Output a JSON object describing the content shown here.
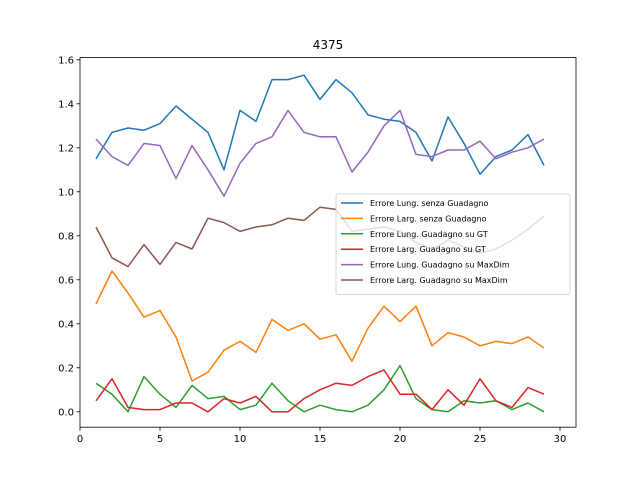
{
  "chart_data": {
    "type": "line",
    "title": "4375",
    "xlabel": "",
    "ylabel": "",
    "xlim": [
      0,
      31
    ],
    "ylim": [
      -0.07,
      1.61
    ],
    "x_ticks": [
      0,
      5,
      10,
      15,
      20,
      25,
      30
    ],
    "y_ticks": [
      0.0,
      0.2,
      0.4,
      0.6,
      0.8,
      1.0,
      1.2,
      1.4,
      1.6
    ],
    "x_tick_labels": [
      "0",
      "5",
      "10",
      "15",
      "20",
      "25",
      "30"
    ],
    "y_tick_labels": [
      "0.0",
      "0.2",
      "0.4",
      "0.6",
      "0.8",
      "1.0",
      "1.2",
      "1.4",
      "1.6"
    ],
    "grid": false,
    "legend_position": "center-right",
    "x": [
      1,
      2,
      3,
      4,
      5,
      6,
      7,
      8,
      9,
      10,
      11,
      12,
      13,
      14,
      15,
      16,
      17,
      18,
      19,
      20,
      21,
      22,
      23,
      24,
      25,
      26,
      27,
      28,
      29
    ],
    "series": [
      {
        "name": "Errore Lung. senza Guadagno",
        "color": "#1f77b4",
        "values": [
          1.15,
          1.27,
          1.29,
          1.28,
          1.31,
          1.39,
          1.33,
          1.27,
          1.1,
          1.37,
          1.32,
          1.51,
          1.51,
          1.53,
          1.42,
          1.51,
          1.45,
          1.35,
          1.33,
          1.32,
          1.27,
          1.14,
          1.34,
          1.22,
          1.08,
          1.16,
          1.19,
          1.26,
          1.12
        ]
      },
      {
        "name": "Errore Larg. senza Guadagno",
        "color": "#ff7f0e",
        "values": [
          0.49,
          0.64,
          0.54,
          0.43,
          0.46,
          0.34,
          0.14,
          0.18,
          0.28,
          0.32,
          0.27,
          0.42,
          0.37,
          0.4,
          0.33,
          0.35,
          0.23,
          0.38,
          0.48,
          0.41,
          0.48,
          0.3,
          0.36,
          0.34,
          0.3,
          0.32,
          0.31,
          0.34,
          0.29
        ]
      },
      {
        "name": "Errore Lung. Guadagno su GT",
        "color": "#2ca02c",
        "values": [
          0.13,
          0.08,
          0.0,
          0.16,
          0.08,
          0.02,
          0.12,
          0.06,
          0.07,
          0.01,
          0.03,
          0.13,
          0.05,
          0.0,
          0.03,
          0.01,
          0.0,
          0.03,
          0.1,
          0.21,
          0.06,
          0.01,
          0.0,
          0.05,
          0.04,
          0.05,
          0.01,
          0.04,
          0.0
        ]
      },
      {
        "name": "Errore Larg. Guadagno su GT",
        "color": "#d62728",
        "values": [
          0.05,
          0.15,
          0.02,
          0.01,
          0.01,
          0.04,
          0.04,
          0.0,
          0.06,
          0.04,
          0.07,
          0.0,
          0.0,
          0.06,
          0.1,
          0.13,
          0.12,
          0.16,
          0.19,
          0.08,
          0.08,
          0.01,
          0.1,
          0.03,
          0.15,
          0.05,
          0.02,
          0.11,
          0.08
        ]
      },
      {
        "name": "Errore Lung. Guadagno su MaxDim",
        "color": "#9467bd",
        "values": [
          1.24,
          1.16,
          1.12,
          1.22,
          1.21,
          1.06,
          1.21,
          1.1,
          0.98,
          1.13,
          1.22,
          1.25,
          1.37,
          1.27,
          1.25,
          1.25,
          1.09,
          1.18,
          1.3,
          1.37,
          1.17,
          1.16,
          1.19,
          1.19,
          1.23,
          1.15,
          1.18,
          1.2,
          1.24
        ]
      },
      {
        "name": "Errore Larg. Guadagno su MaxDim",
        "color": "#8c564b",
        "values": [
          0.84,
          0.7,
          0.66,
          0.76,
          0.67,
          0.77,
          0.74,
          0.88,
          0.86,
          0.82,
          0.84,
          0.85,
          0.88,
          0.87,
          0.93,
          0.92,
          0.82,
          0.83,
          0.84,
          0.82,
          0.77,
          0.74,
          0.78,
          0.75,
          0.72,
          0.74,
          0.78,
          0.83,
          0.89
        ]
      }
    ]
  }
}
